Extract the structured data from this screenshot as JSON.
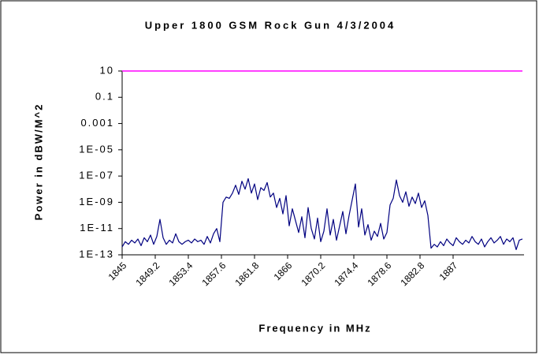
{
  "chart_data": {
    "type": "line",
    "title": "Upper 1800 GSM Rock Gun 4/3/2004",
    "xlabel": "Frequency in MHz",
    "ylabel": "Power in dBW/M^2",
    "log_y": true,
    "grid": false,
    "xlim": [
      1845,
      1896
    ],
    "xticks": [
      1845,
      1849.2,
      1853.4,
      1857.6,
      1861.8,
      1866,
      1870.2,
      1874.4,
      1878.6,
      1882.8,
      1887
    ],
    "ylim": [
      1e-13,
      10
    ],
    "yticks": [
      10,
      0.1,
      0.001,
      {
        "value": 1e-05,
        "label": "1E-05"
      },
      {
        "value": 1e-07,
        "label": "1E-07"
      },
      {
        "value": 1e-09,
        "label": "1E-09"
      },
      {
        "value": 1e-11,
        "label": "1E-11"
      },
      {
        "value": 1e-13,
        "label": "1E-13"
      }
    ],
    "x": [
      1845,
      1845.4,
      1845.8,
      1846.2,
      1846.6,
      1847,
      1847.4,
      1847.8,
      1848.2,
      1848.6,
      1849,
      1849.4,
      1849.8,
      1850.2,
      1850.6,
      1851,
      1851.4,
      1851.8,
      1852.2,
      1852.6,
      1853,
      1853.4,
      1853.8,
      1854.2,
      1854.6,
      1855,
      1855.4,
      1855.8,
      1856.2,
      1856.6,
      1857,
      1857.4,
      1857.8,
      1858.2,
      1858.6,
      1859,
      1859.4,
      1859.8,
      1860.2,
      1860.6,
      1861,
      1861.4,
      1861.8,
      1862.2,
      1862.6,
      1863,
      1863.4,
      1863.8,
      1864.2,
      1864.6,
      1865,
      1865.4,
      1865.8,
      1866.2,
      1866.6,
      1867,
      1867.4,
      1867.8,
      1868.2,
      1868.6,
      1869,
      1869.4,
      1869.8,
      1870.2,
      1870.6,
      1871,
      1871.4,
      1871.8,
      1872.2,
      1872.6,
      1873,
      1873.4,
      1873.8,
      1874.2,
      1874.6,
      1875,
      1875.4,
      1875.8,
      1876.2,
      1876.6,
      1877,
      1877.4,
      1877.8,
      1878.2,
      1878.6,
      1879,
      1879.4,
      1879.8,
      1880.2,
      1880.6,
      1881,
      1881.4,
      1881.8,
      1882.2,
      1882.6,
      1883,
      1883.4,
      1883.8,
      1884.2,
      1884.6,
      1885,
      1885.4,
      1885.8,
      1886.2,
      1886.6,
      1887,
      1887.4,
      1887.8,
      1888.2,
      1888.6,
      1889,
      1889.4,
      1889.8,
      1890.2,
      1890.6,
      1891,
      1891.4,
      1891.8,
      1892.2,
      1892.6,
      1893,
      1893.4,
      1893.8,
      1894.2,
      1894.6,
      1895,
      1895.4,
      1895.8
    ],
    "series": [
      {
        "color": "#000080",
        "values": [
          4e-13,
          1e-12,
          6.3e-13,
          1.3e-12,
          8e-13,
          1.6e-12,
          5e-13,
          2e-12,
          1e-12,
          3.2e-12,
          6.3e-13,
          2.5e-12,
          5e-11,
          2e-12,
          6.3e-13,
          1.3e-12,
          8e-13,
          4e-12,
          1e-12,
          6.3e-13,
          1e-12,
          1.3e-12,
          8e-13,
          1.6e-12,
          1e-12,
          1.3e-12,
          6.3e-13,
          2.5e-12,
          8e-13,
          4e-12,
          1e-11,
          1e-12,
          1e-09,
          2.5e-09,
          2e-09,
          5e-09,
          2e-08,
          4e-09,
          4e-08,
          1e-08,
          6.3e-08,
          5e-09,
          2.5e-08,
          1.6e-09,
          1.3e-08,
          8e-09,
          3.2e-08,
          2.5e-09,
          5e-09,
          4e-10,
          2e-09,
          1.3e-10,
          3.2e-09,
          1.6e-11,
          3.2e-10,
          4e-11,
          5e-12,
          8e-11,
          2e-12,
          4e-10,
          1e-11,
          1.6e-12,
          6.3e-11,
          1e-12,
          6.3e-12,
          3.2e-10,
          3.2e-12,
          5e-11,
          1.3e-12,
          1.6e-11,
          2e-10,
          4e-12,
          1e-10,
          1.6e-09,
          2.5e-08,
          1.3e-11,
          3.2e-10,
          3.2e-12,
          2e-11,
          1.3e-12,
          6.3e-12,
          2.5e-12,
          2.5e-11,
          1.6e-12,
          5e-12,
          6.3e-10,
          2e-09,
          5e-08,
          3.2e-09,
          1e-09,
          6.3e-09,
          5e-10,
          2.5e-09,
          8e-10,
          5e-09,
          4e-10,
          1.3e-09,
          1e-10,
          3.2e-13,
          6.3e-13,
          4e-13,
          1e-12,
          5e-13,
          1.6e-12,
          8e-13,
          5e-13,
          2e-12,
          1e-12,
          6.3e-13,
          1.3e-12,
          8e-13,
          2.5e-12,
          1e-12,
          6.3e-13,
          1.6e-12,
          4e-13,
          1e-12,
          2e-12,
          8e-13,
          1.3e-12,
          2.5e-12,
          6.3e-13,
          1.6e-12,
          1e-12,
          2e-12,
          2.5e-13,
          1.3e-12,
          1.6e-12
        ]
      },
      {
        "color": "#ff00ff",
        "values": [
          10,
          10,
          10,
          10,
          10,
          10,
          10,
          10,
          10,
          10,
          10,
          10,
          10,
          10,
          10,
          10,
          10,
          10,
          10,
          10,
          10,
          10,
          10,
          10,
          10,
          10,
          10,
          10,
          10,
          10,
          10,
          10,
          10,
          10,
          10,
          10,
          10,
          10,
          10,
          10,
          10,
          10,
          10,
          10,
          10,
          10,
          10,
          10,
          10,
          10,
          10,
          10,
          10,
          10,
          10,
          10,
          10,
          10,
          10,
          10,
          10,
          10,
          10,
          10,
          10,
          10,
          10,
          10,
          10,
          10,
          10,
          10,
          10,
          10,
          10,
          10,
          10,
          10,
          10,
          10,
          10,
          10,
          10,
          10,
          10,
          10,
          10,
          10,
          10,
          10,
          10,
          10,
          10,
          10,
          10,
          10,
          10,
          10,
          10,
          10,
          10,
          10,
          10,
          10,
          10,
          10,
          10,
          10,
          10,
          10,
          10,
          10,
          10,
          10,
          10,
          10,
          10,
          10,
          10,
          10,
          10,
          10,
          10,
          10,
          10,
          10,
          10,
          10
        ]
      }
    ]
  }
}
